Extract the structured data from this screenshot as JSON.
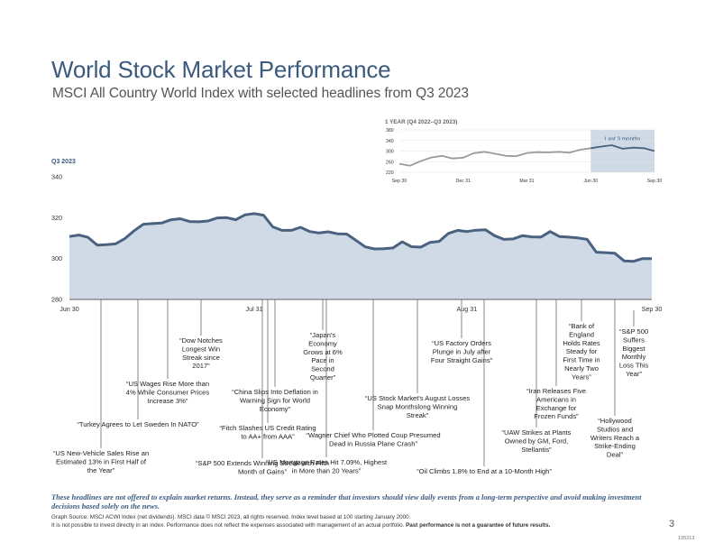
{
  "header": {
    "title": "World Stock Market Performance",
    "subtitle": "MSCI All Country World Index with selected headlines from Q3 2023"
  },
  "colors": {
    "title": "#3b5a7e",
    "line": "#4a6280",
    "area": "#cfdae6",
    "inset_line": "#9a9a9a",
    "inset_highlight_line": "#4a6280",
    "inset_highlight_band": "#cfdae6",
    "leader": "#555555"
  },
  "chart_data": [
    {
      "type": "area",
      "title": "Q3 2023",
      "ylim": [
        280,
        340
      ],
      "y_ticks": [
        "340",
        "320",
        "300",
        "280"
      ],
      "x_ticks": [
        "Jun 30",
        "Jul 31",
        "Aug 31",
        "Sep 30"
      ],
      "x": [
        "Jun 30",
        "Jul 3",
        "Jul 5",
        "Jul 6",
        "Jul 7",
        "Jul 10",
        "Jul 11",
        "Jul 12",
        "Jul 13",
        "Jul 14",
        "Jul 17",
        "Jul 18",
        "Jul 19",
        "Jul 20",
        "Jul 21",
        "Jul 24",
        "Jul 25",
        "Jul 26",
        "Jul 27",
        "Jul 28",
        "Jul 31",
        "Aug 1",
        "Aug 2",
        "Aug 3",
        "Aug 4",
        "Aug 7",
        "Aug 8",
        "Aug 9",
        "Aug 10",
        "Aug 11",
        "Aug 14",
        "Aug 15",
        "Aug 16",
        "Aug 17",
        "Aug 18",
        "Aug 21",
        "Aug 22",
        "Aug 23",
        "Aug 24",
        "Aug 25",
        "Aug 28",
        "Aug 29",
        "Aug 30",
        "Aug 31",
        "Sep 1",
        "Sep 5",
        "Sep 6",
        "Sep 7",
        "Sep 8",
        "Sep 11",
        "Sep 12",
        "Sep 13",
        "Sep 14",
        "Sep 15",
        "Sep 18",
        "Sep 19",
        "Sep 20",
        "Sep 21",
        "Sep 22",
        "Sep 25",
        "Sep 26",
        "Sep 27",
        "Sep 28",
        "Sep 29"
      ],
      "values": [
        310.8,
        311.5,
        310.4,
        306.6,
        306.8,
        307.2,
        309.8,
        313.6,
        316.8,
        317.1,
        317.4,
        319.0,
        319.5,
        318.1,
        318.0,
        318.4,
        319.9,
        320.0,
        319.0,
        321.4,
        322.0,
        321.2,
        315.5,
        313.8,
        313.8,
        315.3,
        313.2,
        312.5,
        313.1,
        312.1,
        312.0,
        308.9,
        305.7,
        304.7,
        304.8,
        305.2,
        308.2,
        305.8,
        305.6,
        307.9,
        308.4,
        312.3,
        313.8,
        313.2,
        313.9,
        314.1,
        311.2,
        309.4,
        309.6,
        311.2,
        310.6,
        310.5,
        313.2,
        310.8,
        310.5,
        310.1,
        309.4,
        303.1,
        302.9,
        302.6,
        298.9,
        298.6,
        300.0,
        300.0
      ]
    },
    {
      "type": "line",
      "title": "1 YEAR (Q4 2022–Q3 2023)",
      "ylim": [
        220,
        380
      ],
      "y_ticks": [
        "380",
        "340",
        "300",
        "260",
        "220"
      ],
      "x_ticks": [
        "Sep 30",
        "Dec 31",
        "Mar 31",
        "Jun 30",
        "Sep 30"
      ],
      "highlight_label": "Last 3 months",
      "x": [
        "Sep 30",
        "Oct 14",
        "Oct 31",
        "Nov 15",
        "Nov 30",
        "Dec 15",
        "Dec 31",
        "Jan 15",
        "Jan 31",
        "Feb 15",
        "Feb 28",
        "Mar 15",
        "Mar 31",
        "Apr 15",
        "Apr 30",
        "May 15",
        "May 31",
        "Jun 15",
        "Jun 30",
        "Jul 15",
        "Jul 31",
        "Aug 15",
        "Aug 31",
        "Sep 15",
        "Sep 30"
      ],
      "values": [
        252,
        245,
        262,
        276,
        282,
        272,
        275,
        292,
        297,
        290,
        282,
        281,
        293,
        296,
        295,
        297,
        294,
        305,
        311,
        317,
        322,
        309,
        313,
        311,
        300
      ]
    }
  ],
  "headlines": [
    {
      "line_x": 112,
      "line_top": 332,
      "line_bottom": 497,
      "lines": [
        "“US New-Vehicle Sales Rise an",
        "Estimated 13% in First Half of",
        "the Year”"
      ]
    },
    {
      "line_x": 153,
      "line_top": 332,
      "line_bottom": 465,
      "lines": [
        "“Turkey Agrees to Let Sweden In NATO”"
      ]
    },
    {
      "line_x": 186,
      "line_top": 332,
      "line_bottom": 420,
      "lines": [
        "“US Wages Rise More than",
        "4% While Consumer Prices",
        "Increase 3%”"
      ]
    },
    {
      "line_x": 223,
      "line_top": 332,
      "line_bottom": 372,
      "lines": [
        "“Dow Notches",
        "Longest Win",
        "Streak since",
        "2017”"
      ]
    },
    {
      "line_x": 291,
      "line_top": 332,
      "line_bottom": 508,
      "lines": [
        "“S&P 500 Extends Winning Streak with Fifth",
        "Month of Gains”"
      ]
    },
    {
      "line_x": 297,
      "line_top": 332,
      "line_bottom": 469,
      "lines": [
        "“Fitch Slashes US Credit Rating",
        "to AA+ from AAA”"
      ]
    },
    {
      "line_x": 305,
      "line_top": 332,
      "line_bottom": 429,
      "lines": [
        "“China Slips Into Deflation in",
        "Warning Sign for World",
        "Economy”"
      ]
    },
    {
      "line_x": 358,
      "line_top": 332,
      "line_bottom": 366,
      "lines": [
        "“Japan's",
        "Economy",
        "Grows at 6%",
        "Pace in",
        "Second",
        "Quarter”"
      ]
    },
    {
      "line_x": 362,
      "line_top": 332,
      "line_bottom": 507,
      "lines": [
        "“US Mortgage Rates Hit 7.09%, Highest",
        "in More than 20 Years”"
      ]
    },
    {
      "line_x": 414,
      "line_top": 332,
      "line_bottom": 477,
      "lines": [
        "“Wagner Chief Who Plotted Coup Presumed",
        "Dead in Russia Plane Crash”"
      ]
    },
    {
      "line_x": 463,
      "line_top": 332,
      "line_bottom": 436,
      "lines": [
        "“US Stock Market's August Losses",
        "Snap Monthslong Winning",
        "Streak”"
      ]
    },
    {
      "line_x": 512,
      "line_top": 332,
      "line_bottom": 375,
      "lines": [
        "“US Factory Orders",
        "Plunge in July after",
        "Four Straight Gains”"
      ]
    },
    {
      "line_x": 537,
      "line_top": 332,
      "line_bottom": 517,
      "lines": [
        "“Oil Climbs 1.8% to End at a 10-Month High”"
      ]
    },
    {
      "line_x": 595,
      "line_top": 332,
      "line_bottom": 474,
      "lines": [
        "“UAW Strikes at Plants",
        "Owned by GM, Ford,",
        "Stellantis”"
      ]
    },
    {
      "line_x": 617,
      "line_top": 332,
      "line_bottom": 428,
      "lines": [
        "“Iran Releases Five",
        "Americans in",
        "Exchange for",
        "Frozen Funds”"
      ]
    },
    {
      "line_x": 645,
      "line_top": 332,
      "line_bottom": 356,
      "lines": [
        "“Bank of",
        "England",
        "Holds Rates",
        "Steady for",
        "First Time in",
        "Nearly Two",
        "Years”"
      ]
    },
    {
      "line_x": 682,
      "line_top": 332,
      "line_bottom": 461,
      "lines": [
        "“Hollywood",
        "Studios and",
        "Writers Reach a",
        "Strike-Ending",
        "Deal”"
      ]
    },
    {
      "line_x": 703,
      "line_top": 344,
      "line_bottom": 362,
      "lines": [
        "“S&P 500",
        "Suffers",
        "Biggest",
        "Monthly",
        "Loss This",
        "Year”"
      ]
    }
  ],
  "footer": {
    "disclaimer": "These headlines are not offered to explain market returns. Instead, they serve as a reminder that investors should view daily events from a long-term perspective and avoid making investment decisions based solely on the news.",
    "source_line1": "Graph Source: MSCI ACWI Index (net dividends). MSCI data © MSCI 2023, all rights reserved. Index level based at 100 starting January 2000.",
    "source_line2": "It is not possible to invest directly in an index. Performance does not reflect the expenses associated with management of an actual portfolio.",
    "source_line2_bold": "Past performance is not a guarantee of future results.",
    "page_number": "3",
    "doc_id": "135213"
  }
}
